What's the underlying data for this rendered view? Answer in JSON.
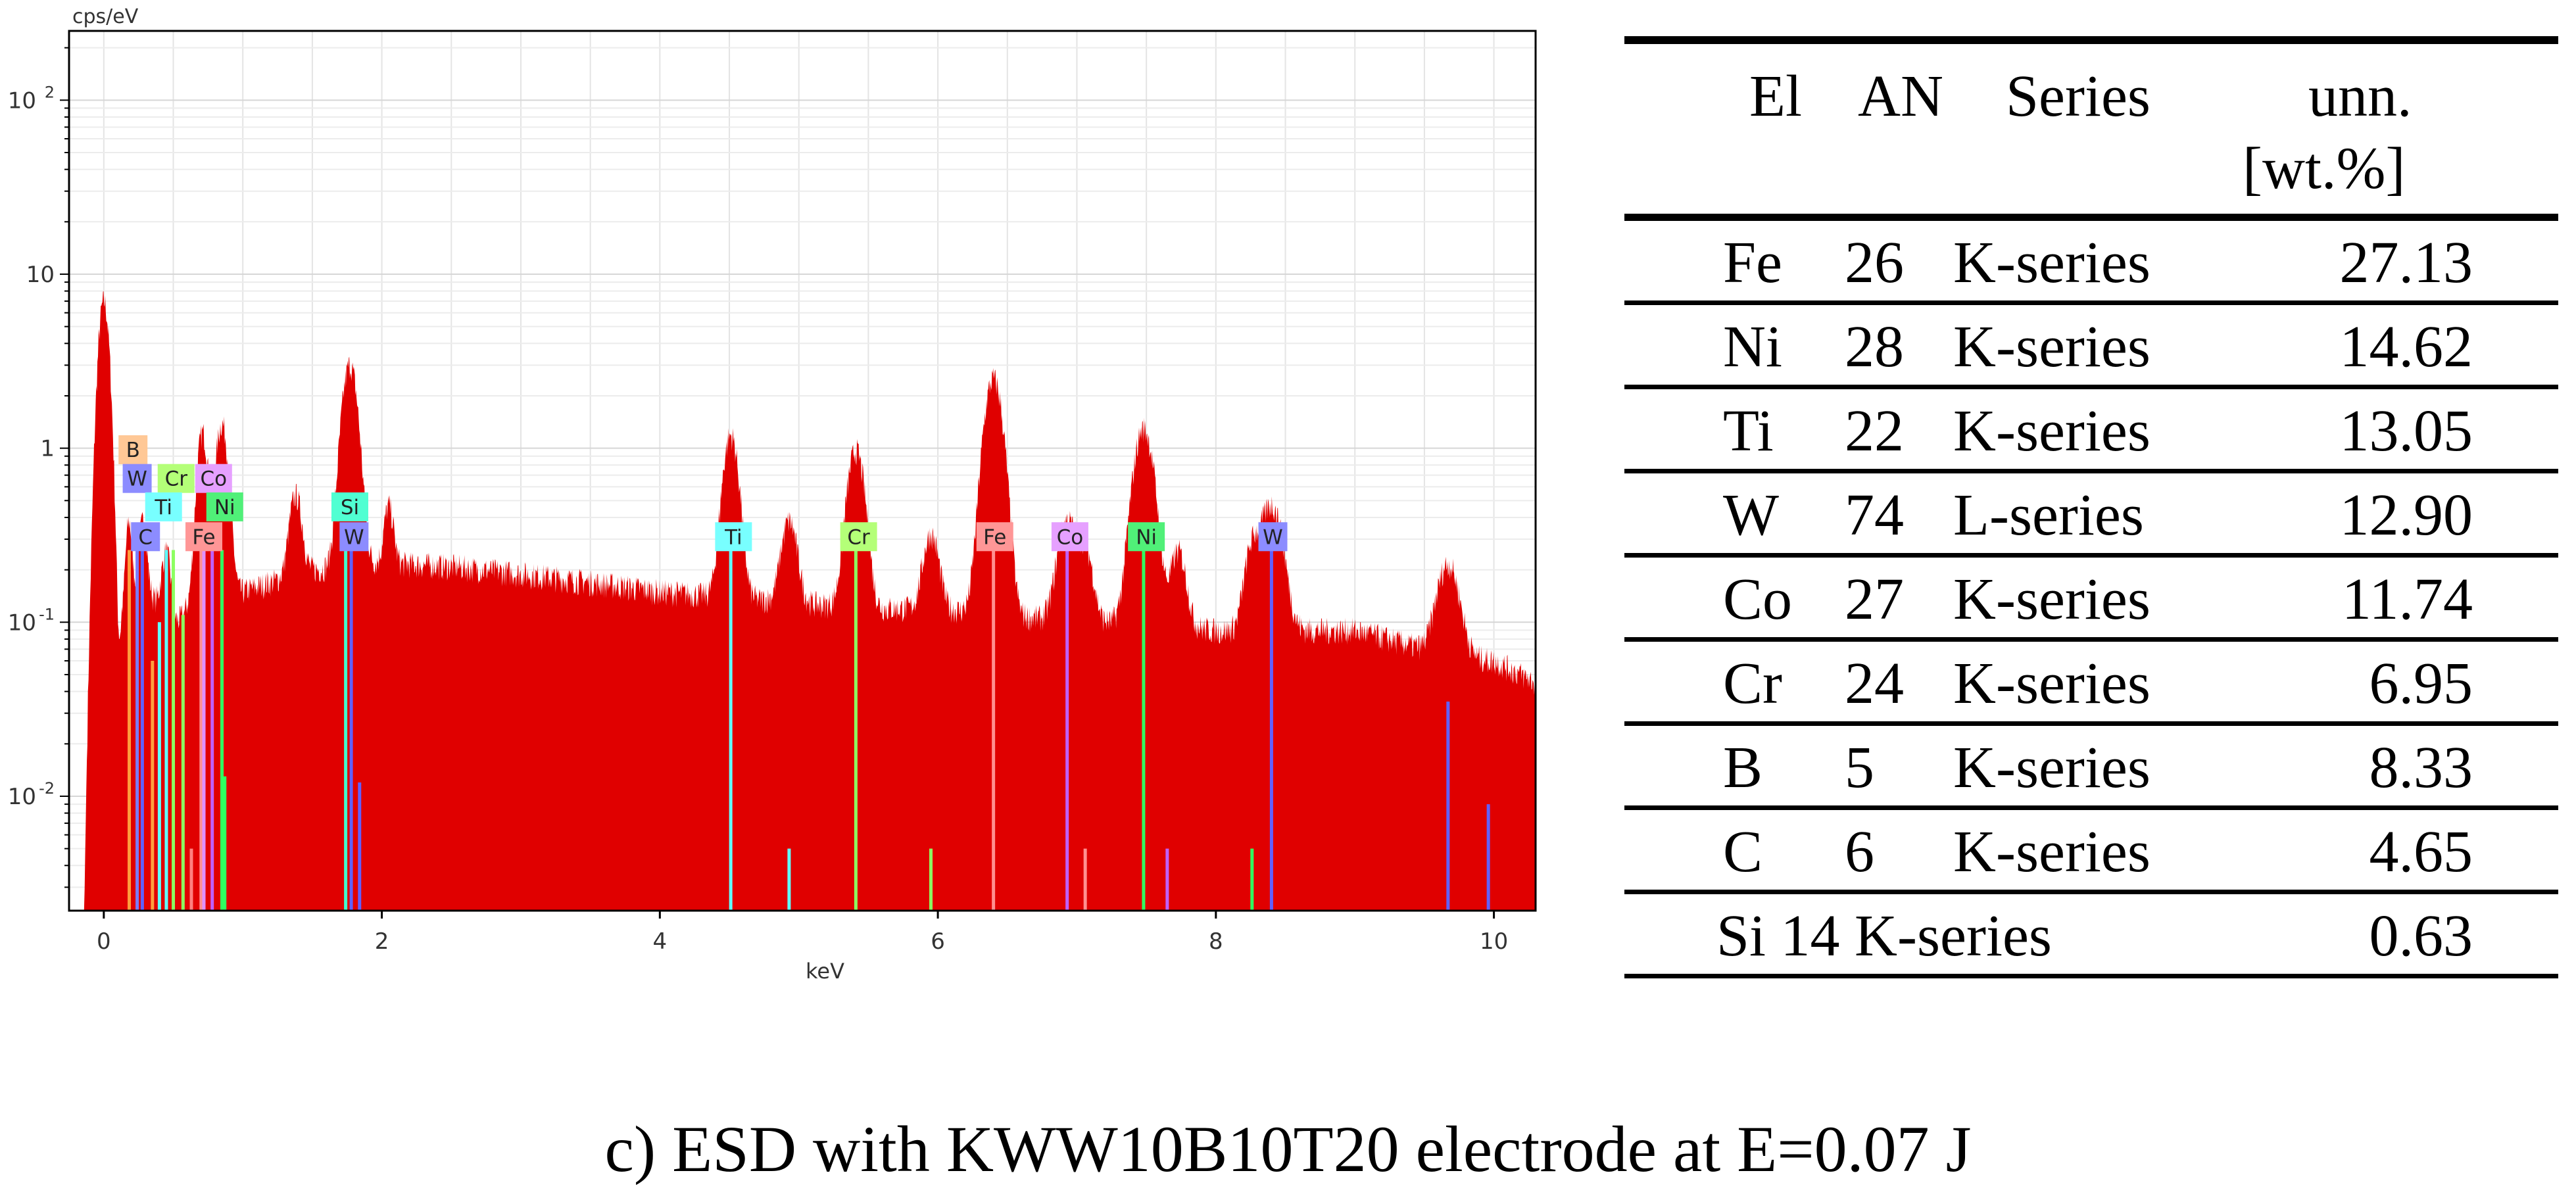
{
  "chart_data": {
    "type": "area",
    "ylabel": "cps/eV",
    "xlabel": "keV",
    "x_ticks": [
      0,
      2,
      4,
      6,
      8,
      10
    ],
    "xlim": [
      -0.25,
      10.3
    ],
    "y_scale": "log",
    "ylim": [
      0.0022,
      250
    ],
    "y_ticks": [
      {
        "value": 100,
        "label": "10",
        "exp": "2"
      },
      {
        "value": 10,
        "label": "10",
        "exp": ""
      },
      {
        "value": 1,
        "label": "1",
        "exp": ""
      },
      {
        "value": 0.1,
        "label": "10",
        "exp": "-1"
      },
      {
        "value": 0.01,
        "label": "10",
        "exp": "-2"
      }
    ],
    "grid": true,
    "fill_color": "#e00000",
    "background": [
      [
        0.1,
        0.004
      ],
      [
        0.13,
        0.1
      ],
      [
        0.2,
        0.14
      ],
      [
        0.3,
        0.16
      ],
      [
        0.4,
        0.12
      ],
      [
        0.5,
        0.09
      ],
      [
        0.6,
        0.12
      ],
      [
        1.0,
        0.15
      ],
      [
        1.5,
        0.2
      ],
      [
        2.0,
        0.22
      ],
      [
        2.5,
        0.21
      ],
      [
        3.0,
        0.19
      ],
      [
        3.5,
        0.17
      ],
      [
        4.0,
        0.15
      ],
      [
        4.5,
        0.14
      ],
      [
        5.0,
        0.13
      ],
      [
        5.5,
        0.12
      ],
      [
        6.0,
        0.12
      ],
      [
        6.5,
        0.11
      ],
      [
        7.0,
        0.1
      ],
      [
        7.5,
        0.1
      ],
      [
        8.0,
        0.09
      ],
      [
        8.5,
        0.09
      ],
      [
        9.0,
        0.09
      ],
      [
        9.5,
        0.07
      ],
      [
        10.0,
        0.06
      ],
      [
        10.3,
        0.045
      ]
    ],
    "peaks": [
      {
        "x": 0.0,
        "height": 7.0,
        "width": 0.035
      },
      {
        "x": 0.18,
        "height": 0.25,
        "width": 0.02
      },
      {
        "x": 0.28,
        "height": 0.22,
        "width": 0.025
      },
      {
        "x": 0.45,
        "height": 0.15,
        "width": 0.03
      },
      {
        "x": 0.71,
        "height": 1.1,
        "width": 0.035
      },
      {
        "x": 0.85,
        "height": 1.25,
        "width": 0.04
      },
      {
        "x": 1.38,
        "height": 0.35,
        "width": 0.04
      },
      {
        "x": 1.77,
        "height": 2.8,
        "width": 0.05
      },
      {
        "x": 2.05,
        "height": 0.25,
        "width": 0.03
      },
      {
        "x": 4.51,
        "height": 1.05,
        "width": 0.05
      },
      {
        "x": 4.93,
        "height": 0.25,
        "width": 0.05
      },
      {
        "x": 5.41,
        "height": 0.85,
        "width": 0.055
      },
      {
        "x": 5.95,
        "height": 0.2,
        "width": 0.05
      },
      {
        "x": 6.4,
        "height": 2.4,
        "width": 0.06
      },
      {
        "x": 6.93,
        "height": 0.28,
        "width": 0.06
      },
      {
        "x": 7.06,
        "height": 0.16,
        "width": 0.05
      },
      {
        "x": 7.48,
        "height": 1.2,
        "width": 0.065
      },
      {
        "x": 7.73,
        "height": 0.16,
        "width": 0.05
      },
      {
        "x": 8.26,
        "height": 0.16,
        "width": 0.05
      },
      {
        "x": 8.4,
        "height": 0.38,
        "width": 0.07
      },
      {
        "x": 9.67,
        "height": 0.15,
        "width": 0.07
      }
    ],
    "element_lines": [
      {
        "x": 0.183,
        "height": 0.26,
        "color": "#ff9e3d"
      },
      {
        "x": 0.24,
        "height": 0.26,
        "color": "#7b7bff"
      },
      {
        "x": 0.277,
        "height": 0.26,
        "color": "#6060ff"
      },
      {
        "x": 0.35,
        "height": 0.06,
        "color": "#ff9e3d"
      },
      {
        "x": 0.4,
        "height": 0.1,
        "color": "#60ffff"
      },
      {
        "x": 0.45,
        "height": 0.26,
        "color": "#60ffff"
      },
      {
        "x": 0.5,
        "height": 0.26,
        "color": "#8cff60"
      },
      {
        "x": 0.57,
        "height": 0.11,
        "color": "#8cff60"
      },
      {
        "x": 0.63,
        "height": 0.005,
        "color": "#ff8080"
      },
      {
        "x": 0.7,
        "height": 0.26,
        "color": "#ff9090"
      },
      {
        "x": 0.72,
        "height": 0.26,
        "color": "#e090ff"
      },
      {
        "x": 0.78,
        "height": 0.26,
        "color": "#c060ff"
      },
      {
        "x": 0.85,
        "height": 0.26,
        "color": "#30ff60"
      },
      {
        "x": 0.87,
        "height": 0.013,
        "color": "#30ff60"
      },
      {
        "x": 1.74,
        "height": 0.26,
        "color": "#40ffd0"
      },
      {
        "x": 1.78,
        "height": 0.26,
        "color": "#6060ff"
      },
      {
        "x": 1.84,
        "height": 0.012,
        "color": "#6060ff"
      },
      {
        "x": 4.51,
        "height": 0.26,
        "color": "#60ffff"
      },
      {
        "x": 4.93,
        "height": 0.005,
        "color": "#60ffff"
      },
      {
        "x": 5.41,
        "height": 0.26,
        "color": "#8cff60"
      },
      {
        "x": 5.95,
        "height": 0.005,
        "color": "#8cff60"
      },
      {
        "x": 6.4,
        "height": 0.26,
        "color": "#ff9090"
      },
      {
        "x": 6.93,
        "height": 0.26,
        "color": "#c060ff"
      },
      {
        "x": 7.06,
        "height": 0.005,
        "color": "#ff9090"
      },
      {
        "x": 7.48,
        "height": 0.26,
        "color": "#30ff60"
      },
      {
        "x": 7.65,
        "height": 0.005,
        "color": "#c060ff"
      },
      {
        "x": 8.26,
        "height": 0.005,
        "color": "#30ff60"
      },
      {
        "x": 8.4,
        "height": 0.26,
        "color": "#6060ff"
      },
      {
        "x": 9.67,
        "height": 0.035,
        "color": "#6060ff"
      },
      {
        "x": 9.96,
        "height": 0.009,
        "color": "#6060ff"
      }
    ],
    "peak_labels": [
      {
        "text": "B",
        "x": 0.21,
        "y": 0.98,
        "color": "#ffc896"
      },
      {
        "text": "W",
        "x": 0.24,
        "y": 0.67,
        "color": "#8c8cff"
      },
      {
        "text": "Cr",
        "x": 0.52,
        "y": 0.67,
        "color": "#b4ff78"
      },
      {
        "text": "Co",
        "x": 0.79,
        "y": 0.67,
        "color": "#e6a0ff"
      },
      {
        "text": "Ti",
        "x": 0.43,
        "y": 0.46,
        "color": "#78ffff"
      },
      {
        "text": "Ni",
        "x": 0.87,
        "y": 0.46,
        "color": "#50f078"
      },
      {
        "text": "Si",
        "x": 1.77,
        "y": 0.46,
        "color": "#50ffd2"
      },
      {
        "text": "C",
        "x": 0.3,
        "y": 0.31,
        "color": "#8c8cff"
      },
      {
        "text": "Fe",
        "x": 0.72,
        "y": 0.31,
        "color": "#ff9696"
      },
      {
        "text": "W",
        "x": 1.8,
        "y": 0.31,
        "color": "#8c8cff"
      },
      {
        "text": "Ti",
        "x": 4.53,
        "y": 0.31,
        "color": "#78ffff"
      },
      {
        "text": "Cr",
        "x": 5.43,
        "y": 0.31,
        "color": "#b4ff78"
      },
      {
        "text": "Fe",
        "x": 6.41,
        "y": 0.31,
        "color": "#ff9696"
      },
      {
        "text": "Co",
        "x": 6.95,
        "y": 0.31,
        "color": "#e6a0ff"
      },
      {
        "text": "Ni",
        "x": 7.5,
        "y": 0.31,
        "color": "#50f078"
      },
      {
        "text": "W",
        "x": 8.41,
        "y": 0.31,
        "color": "#8c8cff"
      }
    ]
  },
  "table": {
    "header": {
      "el": "El",
      "an": "AN",
      "series": "Series",
      "unn": "unn.",
      "unit": "[wt.%]"
    },
    "rows": [
      {
        "el": "Fe",
        "an": "26",
        "series": "K-series",
        "value": "27.13"
      },
      {
        "el": "Ni",
        "an": "28",
        "series": "K-series",
        "value": "14.62"
      },
      {
        "el": "Ti",
        "an": "22",
        "series": "K-series",
        "value": "13.05"
      },
      {
        "el": "W",
        "an": "74",
        "series": "L-series",
        "value": "12.90"
      },
      {
        "el": "Co",
        "an": "27",
        "series": "K-series",
        "value": "11.74"
      },
      {
        "el": "Cr",
        "an": "24",
        "series": "K-series",
        "value": "6.95"
      },
      {
        "el": "B",
        "an": "5",
        "series": "K-series",
        "value": "8.33"
      },
      {
        "el": "C",
        "an": "6",
        "series": "K-series",
        "value": "4.65"
      }
    ],
    "last_row": "Si 14 K-series",
    "last_value": "0.63"
  },
  "caption": "c) ESD with KWW10B10T20 electrode at E=0.07 J"
}
